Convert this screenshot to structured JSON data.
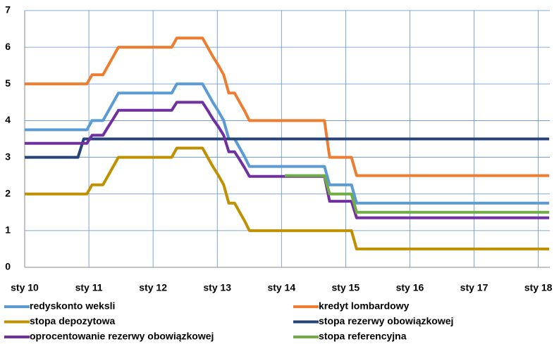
{
  "chart_data": {
    "type": "line",
    "xlim": [
      2010,
      2018.18
    ],
    "xticks": [
      {
        "value": 2010,
        "label": "sty 10"
      },
      {
        "value": 2011,
        "label": "sty 11"
      },
      {
        "value": 2012,
        "label": "sty 12"
      },
      {
        "value": 2013,
        "label": "sty 13"
      },
      {
        "value": 2014,
        "label": "sty 14"
      },
      {
        "value": 2015,
        "label": "sty 15"
      },
      {
        "value": 2016,
        "label": "sty 16"
      },
      {
        "value": 2017,
        "label": "sty 17"
      },
      {
        "value": 2018,
        "label": "sty 18"
      }
    ],
    "ylim": [
      0,
      7
    ],
    "yticks": [
      0,
      1,
      2,
      3,
      4,
      5,
      6,
      7
    ],
    "grid": true,
    "legend": "bottom",
    "series": [
      {
        "name": "redyskonto weksli",
        "color": "#5b9bd5",
        "x": [
          2010,
          2010.97,
          2011.05,
          2011.22,
          2011.3,
          2011.38,
          2011.46,
          2012.29,
          2012.37,
          2012.77,
          2012.85,
          2012.93,
          2013.02,
          2013.1,
          2013.18,
          2013.27,
          2013.35,
          2013.43,
          2013.5,
          2014.67,
          2014.75,
          2015.09,
          2015.17,
          2018.17
        ],
        "values": [
          3.75,
          3.75,
          4.0,
          4.0,
          4.25,
          4.5,
          4.75,
          4.75,
          5.0,
          5.0,
          4.75,
          4.5,
          4.25,
          4.0,
          3.5,
          3.5,
          3.25,
          3.0,
          2.75,
          2.75,
          2.25,
          2.25,
          1.75,
          1.75
        ]
      },
      {
        "name": "kredyt lombardowy",
        "color": "#ed7d31",
        "x": [
          2010,
          2010.97,
          2011.05,
          2011.22,
          2011.3,
          2011.38,
          2011.46,
          2012.29,
          2012.37,
          2012.77,
          2012.85,
          2012.93,
          2013.02,
          2013.1,
          2013.18,
          2013.27,
          2013.35,
          2013.43,
          2013.5,
          2014.67,
          2014.75,
          2015.09,
          2015.17,
          2018.17
        ],
        "values": [
          5,
          5,
          5.25,
          5.25,
          5.5,
          5.75,
          6,
          6,
          6.25,
          6.25,
          6,
          5.75,
          5.5,
          5.25,
          4.75,
          4.75,
          4.5,
          4.25,
          4,
          4,
          3,
          3,
          2.5,
          2.5
        ]
      },
      {
        "name": "stopa depozytowa",
        "color": "#bf9000",
        "x": [
          2010,
          2010.97,
          2011.05,
          2011.22,
          2011.3,
          2011.38,
          2011.46,
          2012.29,
          2012.37,
          2012.77,
          2012.85,
          2012.93,
          2013.02,
          2013.1,
          2013.18,
          2013.27,
          2013.35,
          2013.43,
          2013.5,
          2014.67,
          2014.75,
          2015.09,
          2015.17,
          2018.17
        ],
        "values": [
          2,
          2,
          2.25,
          2.25,
          2.5,
          2.75,
          3,
          3,
          3.25,
          3.25,
          3,
          2.75,
          2.5,
          2.25,
          1.75,
          1.75,
          1.5,
          1.25,
          1,
          1,
          1,
          1,
          0.5,
          0.5
        ]
      },
      {
        "name": "stopa rezerwy obowiązkowej",
        "color": "#264478",
        "x": [
          2010,
          2010.83,
          2010.92,
          2018.17
        ],
        "values": [
          3,
          3,
          3.5,
          3.5
        ]
      },
      {
        "name": "oprocentowanie rezerwy obowiązkowej",
        "color": "#7030a0",
        "x": [
          2010,
          2010.97,
          2011.05,
          2011.22,
          2011.3,
          2011.38,
          2011.46,
          2012.29,
          2012.37,
          2012.77,
          2012.85,
          2012.93,
          2013.02,
          2013.1,
          2013.18,
          2013.27,
          2013.35,
          2013.43,
          2013.5,
          2014.67,
          2014.75,
          2015.09,
          2015.17,
          2018.17
        ],
        "values": [
          3.38,
          3.38,
          3.6,
          3.6,
          3.83,
          4.05,
          4.28,
          4.28,
          4.5,
          4.5,
          4.28,
          4.05,
          3.83,
          3.6,
          3.15,
          3.15,
          2.93,
          2.7,
          2.48,
          2.48,
          1.8,
          1.8,
          1.35,
          1.35
        ]
      },
      {
        "name": "stopa referencyjna",
        "color": "#70ad47",
        "x": [
          2014.05,
          2014.67,
          2014.75,
          2015.09,
          2015.17,
          2018.17
        ],
        "values": [
          2.5,
          2.5,
          2,
          2,
          1.5,
          1.5
        ]
      }
    ]
  }
}
